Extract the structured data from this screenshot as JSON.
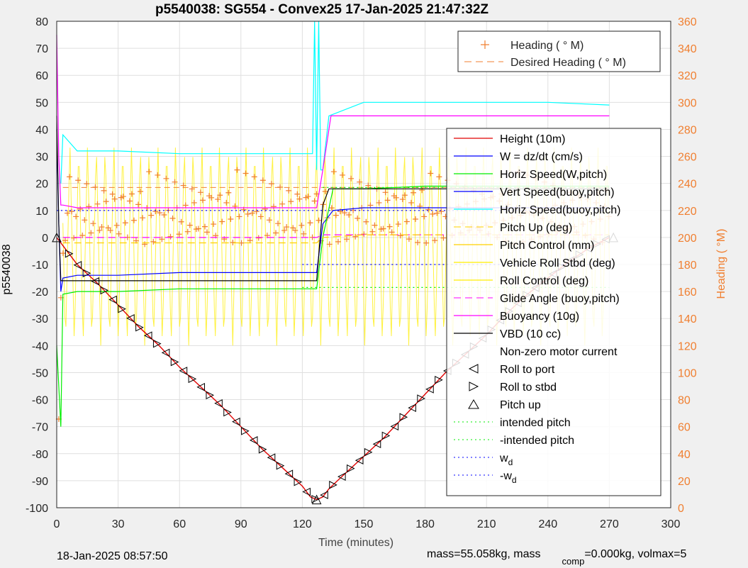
{
  "colors": {
    "height": "#e00000",
    "w": "#0000ff",
    "horiz_speed": "#00ee00",
    "vert_speed": "#0000ff",
    "horiz_speed_buoy": "#00ffff",
    "pitch_up": "#ffd000",
    "pitch_control": "#ffd000",
    "roll": "#ffee00",
    "glide": "#ff00ff",
    "buoyancy": "#ff00ff",
    "vbd": "#000000",
    "heading": "#f07f30",
    "right_axis": "#f07f30"
  },
  "chart_data": {
    "type": "line",
    "title": "p5540038: SG554 - Convex25 17-Jan-2025 21:47:32Z",
    "xlabel": "Time (minutes)",
    "ylabel": "p5540038",
    "ylabel_right": "Heading (  °M)",
    "xlim": [
      0,
      300
    ],
    "ylim": [
      -100,
      80
    ],
    "ylim_right": [
      0,
      360
    ],
    "xticks": [
      "0",
      "30",
      "60",
      "90",
      "120",
      "150",
      "180",
      "210",
      "240",
      "270",
      "300"
    ],
    "yticks": [
      "80",
      "70",
      "60",
      "50",
      "40",
      "30",
      "20",
      "10",
      "0",
      "-10",
      "-20",
      "-30",
      "-40",
      "-50",
      "-60",
      "-70",
      "-80",
      "-90",
      "-100"
    ],
    "yticks_right": [
      "360",
      "340",
      "320",
      "300",
      "280",
      "260",
      "240",
      "220",
      "200",
      "180",
      "160",
      "140",
      "120",
      "100",
      "80",
      "60",
      "40",
      "20",
      "0"
    ],
    "grid": true,
    "footer_left": "18-Jan-2025 08:57:50",
    "footer_right_a": "mass=55.058kg, mass",
    "footer_right_sub": "comp",
    "footer_right_b": "=0.000kg, volmax=5",
    "legend_top": {
      "placement": "top-right",
      "entries": [
        {
          "label": "Heading (  ° M)",
          "style": "plus"
        },
        {
          "label": "Desired Heading (   ° M)",
          "style": "dash"
        }
      ]
    },
    "legend_main": {
      "placement": "right",
      "entries": [
        {
          "label": "Height (10m)",
          "style": "line",
          "color": "height"
        },
        {
          "label": "W = dz/dt (cm/s)",
          "style": "line",
          "color": "w"
        },
        {
          "label": "Horiz Speed(W,pitch)",
          "style": "line",
          "color": "horiz_speed"
        },
        {
          "label": "Vert Speed(buoy,pitch)",
          "style": "line",
          "color": "vert_speed"
        },
        {
          "label": "Horiz Speed(buoy,pitch)",
          "style": "line",
          "color": "horiz_speed_buoy"
        },
        {
          "label": "Pitch Up (deg)",
          "style": "dash",
          "color": "pitch_up"
        },
        {
          "label": "Pitch Control (mm)",
          "style": "line",
          "color": "pitch_control"
        },
        {
          "label": "Vehicle Roll Stbd (deg)",
          "style": "line",
          "color": "roll"
        },
        {
          "label": "Roll Control (deg)",
          "style": "line",
          "color": "roll"
        },
        {
          "label": "Glide Angle (buoy,pitch)",
          "style": "dash",
          "color": "glide"
        },
        {
          "label": "Buoyancy (10g)",
          "style": "line",
          "color": "buoyancy"
        },
        {
          "label": "VBD (10 cc)",
          "style": "line",
          "color": "vbd"
        },
        {
          "label": "Non-zero motor current",
          "style": "none"
        },
        {
          "label": "Roll to port",
          "style": "tri-left"
        },
        {
          "label": "Roll to stbd",
          "style": "tri-right"
        },
        {
          "label": "Pitch up",
          "style": "tri-up"
        },
        {
          "label": "intended pitch",
          "style": "dot",
          "color": "horiz_speed"
        },
        {
          "label": "-intended pitch",
          "style": "dot",
          "color": "horiz_speed"
        },
        {
          "label": "w",
          "sub": "d",
          "style": "dot",
          "color": "w"
        },
        {
          "label": "-w",
          "sub": "d",
          "style": "dot",
          "color": "w"
        }
      ]
    },
    "series": [
      {
        "key": "height",
        "x": [
          0,
          3,
          10,
          20,
          30,
          40,
          50,
          60,
          70,
          80,
          90,
          100,
          110,
          120,
          124,
          127,
          130,
          133,
          140,
          150,
          160,
          170,
          180,
          190,
          200,
          210,
          220,
          230,
          240,
          250,
          260,
          270
        ],
        "y": [
          0,
          -3,
          -10,
          -17,
          -25,
          -33,
          -40,
          -48,
          -55,
          -62,
          -70,
          -78,
          -85,
          -92,
          -96,
          -97,
          -96,
          -93,
          -88,
          -81,
          -74,
          -66,
          -58,
          -50,
          -43,
          -36,
          -28,
          -21,
          -15,
          -9,
          -4,
          0
        ]
      },
      {
        "key": "w",
        "x": [
          0,
          1,
          2,
          3,
          10,
          30,
          60,
          90,
          120,
          125,
          127,
          130,
          135,
          150,
          180,
          210,
          240,
          270
        ],
        "y": [
          40,
          5,
          -20,
          -15,
          -14,
          -14,
          -13,
          -13,
          -13,
          -13,
          -13,
          5,
          10,
          11,
          11,
          11,
          11,
          11
        ]
      },
      {
        "key": "horiz_speed",
        "x": [
          0,
          2,
          3,
          10,
          30,
          60,
          90,
          120,
          125,
          127,
          130,
          135,
          150,
          180,
          210,
          240,
          270
        ],
        "y": [
          -40,
          -70,
          -21,
          -20,
          -20,
          -19,
          -19,
          -19,
          -19,
          -19,
          0,
          18,
          18,
          19,
          19,
          19,
          19
        ]
      },
      {
        "key": "horiz_speed_buoy",
        "x": [
          2,
          3,
          10,
          30,
          60,
          90,
          120,
          125,
          126,
          127,
          128,
          129,
          130,
          133,
          150,
          180,
          210,
          240,
          270
        ],
        "y": [
          20,
          38,
          32,
          32,
          31,
          31,
          31,
          31,
          80,
          25,
          80,
          25,
          25,
          45,
          50,
          50,
          50,
          50,
          49
        ]
      },
      {
        "key": "buoyancy",
        "x": [
          0,
          1,
          2,
          3,
          10,
          30,
          60,
          90,
          120,
          125,
          127,
          130,
          134,
          150,
          180,
          210,
          240,
          270
        ],
        "y": [
          75,
          30,
          12,
          12,
          11,
          11,
          11,
          11,
          11,
          11,
          11,
          25,
          45,
          45,
          45,
          45,
          45,
          45
        ]
      },
      {
        "key": "vbd",
        "x": [
          0,
          1,
          2,
          3,
          10,
          30,
          60,
          90,
          120,
          125,
          127,
          130,
          133,
          150,
          180,
          210,
          240,
          270
        ],
        "y": [
          45,
          5,
          -16,
          -16,
          -16,
          -16,
          -16,
          -16,
          -16,
          -16,
          -16,
          12,
          18,
          18,
          18,
          18,
          18,
          18
        ]
      },
      {
        "key": "glide",
        "x": [
          3,
          10,
          60,
          120,
          127,
          130,
          150,
          210,
          270
        ],
        "y": [
          0,
          0,
          0,
          0,
          0,
          1,
          1,
          1,
          1
        ],
        "dash": true
      },
      {
        "key": "pitch_up",
        "x": [
          3,
          10,
          60,
          120,
          127,
          130,
          150,
          210,
          270
        ],
        "y": [
          -2,
          -2,
          -2,
          -2,
          -2,
          0,
          1,
          1,
          1
        ],
        "dash": true
      },
      {
        "key": "intended_pos",
        "x": [
          130,
          270
        ],
        "y": [
          18.5,
          18.5
        ],
        "dot": true
      },
      {
        "key": "intended_neg",
        "x": [
          120,
          270
        ],
        "y": [
          -18.5,
          -18.5
        ],
        "dot": true
      },
      {
        "key": "wd_pos",
        "x": [
          0,
          270
        ],
        "y": [
          10,
          10
        ],
        "dot": true
      },
      {
        "key": "wd_neg",
        "x": [
          120,
          270
        ],
        "y": [
          -10,
          -10
        ],
        "dot": true
      }
    ],
    "markers": {
      "pitch_up_x": [
        0,
        127,
        272
      ],
      "pitch_up_y": [
        0,
        -97,
        0
      ],
      "roll_spacing_minutes": 4.3
    },
    "heading": {
      "zigzag_count": 64,
      "low_deg": 40,
      "plateau_deg": 237,
      "sample_peak_deg": [
        246,
        260,
        262,
        272
      ]
    }
  }
}
